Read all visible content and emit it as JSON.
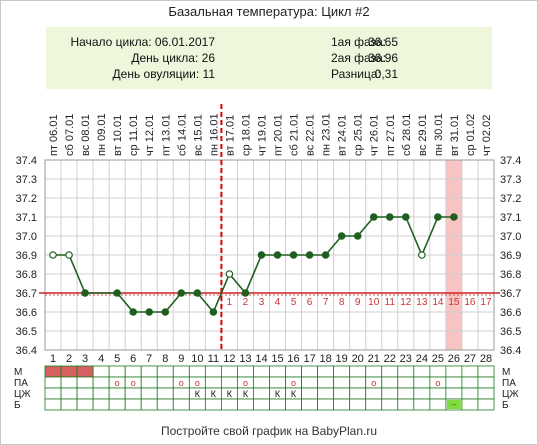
{
  "title": "Базальная температура: Цикл #2",
  "info": {
    "cycle_start": "Начало цикла: 06.01.2017",
    "cycle_day": "День цикла: 26",
    "ovulation_day": "День овуляции: 11",
    "phase1_label": "1ая фаза:",
    "phase1_value": "36.65",
    "phase2_label": "2ая фаза:",
    "phase2_value": "36.96",
    "diff_label": "Разница:",
    "diff_value": "0,31"
  },
  "footer": "Постройте свой график на BabyPlan.ru",
  "colors": {
    "line": "#1f5f1f",
    "ovulation": "#dd0000",
    "coverline": "#cc2222",
    "today": "#f7c3c3",
    "menses": "#d46060",
    "info_bg": "#eef6dc",
    "grid_row_green": "#1f7a1f",
    "green_cell": "#7fdc3c"
  },
  "chart_data": {
    "type": "line",
    "dates": [
      "06.01",
      "07.01",
      "08.01",
      "09.01",
      "10.01",
      "11.01",
      "12.01",
      "13.01",
      "14.01",
      "15.01",
      "16.01",
      "17.01",
      "18.01",
      "19.01",
      "20.01",
      "21.01",
      "22.01",
      "23.01",
      "24.01",
      "25.01",
      "26.01",
      "27.01",
      "28.01",
      "29.01",
      "30.01",
      "31.01",
      "01.02",
      "02.02"
    ],
    "weekdays": [
      "пт",
      "сб",
      "вс",
      "пн",
      "вт",
      "ср",
      "чт",
      "пт",
      "сб",
      "вс",
      "пн",
      "вт",
      "ср",
      "чт",
      "пт",
      "сб",
      "вс",
      "пн",
      "вт",
      "ср",
      "чт",
      "пт",
      "сб",
      "вс",
      "пн",
      "вт",
      "ср",
      "чт"
    ],
    "days": [
      1,
      2,
      3,
      4,
      5,
      6,
      7,
      8,
      9,
      10,
      11,
      12,
      13,
      14,
      15,
      16,
      17,
      18,
      19,
      20,
      21,
      22,
      23,
      24,
      25,
      26,
      27,
      28
    ],
    "temperatures": [
      36.9,
      36.9,
      36.7,
      null,
      36.7,
      36.6,
      36.6,
      36.6,
      36.7,
      36.7,
      36.6,
      36.8,
      36.7,
      36.9,
      36.9,
      36.9,
      36.9,
      36.9,
      37.0,
      37.0,
      37.1,
      37.1,
      37.1,
      36.9,
      37.1,
      37.1,
      null,
      null
    ],
    "open_markers": [
      1,
      2,
      12,
      24
    ],
    "ylim": [
      36.4,
      37.4
    ],
    "yticks": [
      "36.4",
      "36.5",
      "36.6",
      "36.7",
      "36.8",
      "36.9",
      "37.0",
      "37.1",
      "37.2",
      "37.3",
      "37.4"
    ],
    "coverline": 36.7,
    "ovulation_day": 11,
    "today_day": 26,
    "phase2_labels": [
      "1",
      "2",
      "3",
      "4",
      "5",
      "6",
      "7",
      "8",
      "9",
      "10",
      "11",
      "12",
      "13",
      "14",
      "15",
      "16",
      "17"
    ],
    "grid": true,
    "rows": [
      {
        "label": "М",
        "menses_days": [
          1,
          2,
          3
        ]
      },
      {
        "label": "ПА",
        "marks": {
          "5": "o",
          "6": "o",
          "9": "o",
          "10": "o",
          "13": "o",
          "16": "o",
          "21": "o",
          "25": "o"
        }
      },
      {
        "label": "ЦЖ",
        "marks": {
          "10": "К",
          "11": "К",
          "12": "К",
          "13": "К",
          "15": "К",
          "16": "К"
        }
      },
      {
        "label": "Б",
        "marks": {
          "26": "--"
        }
      }
    ]
  }
}
